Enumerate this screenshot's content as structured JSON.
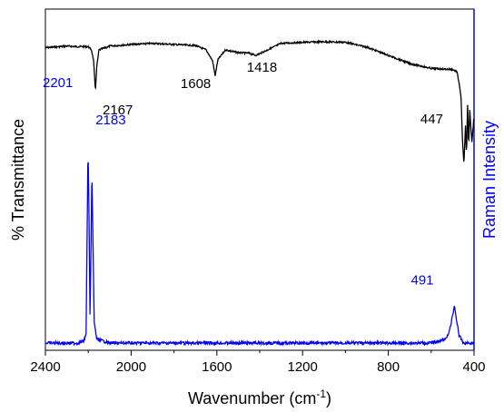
{
  "chart_data": {
    "type": "line",
    "xlabel": "Wavenumber (cm",
    "xlabel_sup": "-1",
    "xlabel_close": ")",
    "ylabel_left": "% Transmittance",
    "ylabel_right": "Raman Intensity",
    "x_reversed": true,
    "xlim": [
      2400,
      400
    ],
    "x_ticks": [
      2400,
      2000,
      1600,
      1200,
      800,
      400
    ],
    "grid": false,
    "y_tick_labels": false,
    "colors": {
      "ir": "#000000",
      "raman": "#0000ff",
      "axis": "#000000",
      "right_axis": "#0000ff"
    },
    "series": [
      {
        "key": "ir",
        "points": [
          [
            2400,
            84
          ],
          [
            2300,
            87
          ],
          [
            2250,
            86
          ],
          [
            2200,
            86
          ],
          [
            2185,
            80
          ],
          [
            2175,
            60
          ],
          [
            2167,
            5
          ],
          [
            2160,
            50
          ],
          [
            2150,
            80
          ],
          [
            2100,
            87
          ],
          [
            2000,
            90
          ],
          [
            1900,
            92
          ],
          [
            1800,
            90
          ],
          [
            1700,
            88
          ],
          [
            1650,
            80
          ],
          [
            1620,
            60
          ],
          [
            1608,
            33
          ],
          [
            1595,
            62
          ],
          [
            1560,
            80
          ],
          [
            1500,
            75
          ],
          [
            1450,
            74
          ],
          [
            1418,
            70
          ],
          [
            1390,
            75
          ],
          [
            1300,
            92
          ],
          [
            1200,
            94
          ],
          [
            1100,
            95
          ],
          [
            1000,
            94
          ],
          [
            900,
            85
          ],
          [
            800,
            70
          ],
          [
            700,
            55
          ],
          [
            600,
            46
          ],
          [
            550,
            45
          ],
          [
            500,
            44
          ],
          [
            480,
            40
          ],
          [
            470,
            20
          ],
          [
            460,
            -10
          ],
          [
            455,
            -80
          ],
          [
            447,
            -130
          ],
          [
            440,
            -60
          ],
          [
            435,
            -115
          ],
          [
            430,
            -20
          ],
          [
            425,
            -100
          ],
          [
            420,
            -30
          ],
          [
            410,
            -90
          ],
          [
            402,
            -50
          ]
        ]
      },
      {
        "key": "raman",
        "points": [
          [
            2400,
            0
          ],
          [
            2300,
            0
          ],
          [
            2250,
            0
          ],
          [
            2220,
            1
          ],
          [
            2210,
            5
          ],
          [
            2205,
            60
          ],
          [
            2201,
            100
          ],
          [
            2196,
            60
          ],
          [
            2192,
            15
          ],
          [
            2188,
            40
          ],
          [
            2183,
            88
          ],
          [
            2178,
            50
          ],
          [
            2172,
            10
          ],
          [
            2160,
            2
          ],
          [
            2100,
            0
          ],
          [
            1800,
            0
          ],
          [
            1500,
            0
          ],
          [
            1200,
            0
          ],
          [
            1000,
            0
          ],
          [
            800,
            0
          ],
          [
            600,
            0
          ],
          [
            530,
            2
          ],
          [
            510,
            8
          ],
          [
            500,
            14
          ],
          [
            491,
            19
          ],
          [
            482,
            12
          ],
          [
            470,
            4
          ],
          [
            450,
            0
          ],
          [
            400,
            0
          ]
        ]
      }
    ],
    "annotations": [
      {
        "text": "2167",
        "series": "ir",
        "x": 2167
      },
      {
        "text": "1608",
        "series": "ir",
        "x": 1608
      },
      {
        "text": "1418",
        "series": "ir",
        "x": 1418
      },
      {
        "text": "447",
        "series": "ir",
        "x": 447
      },
      {
        "text": "2201",
        "series": "raman",
        "x": 2201
      },
      {
        "text": "2183",
        "series": "raman",
        "x": 2183
      },
      {
        "text": "491",
        "series": "raman",
        "x": 491
      }
    ]
  }
}
